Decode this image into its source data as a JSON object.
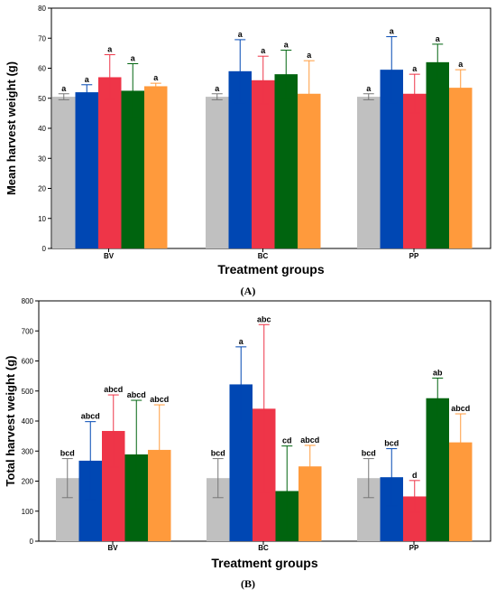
{
  "colors": [
    "#c0c0c0",
    "#0047b3",
    "#ee3548",
    "#00640f",
    "#ff9a3c"
  ],
  "chart_data": [
    {
      "type": "bar",
      "panel_label": "(A)",
      "xlabel": "Treatment groups",
      "ylabel": "Mean harvest weight (g)",
      "ylim": [
        0,
        80
      ],
      "yticks": [
        0,
        10,
        20,
        30,
        40,
        50,
        60,
        70,
        80
      ],
      "categories": [
        "BV",
        "BC",
        "PP"
      ],
      "series": [
        {
          "values": [
            50.5,
            50.5,
            50.5
          ],
          "err": [
            1,
            1,
            1
          ],
          "labels": [
            "a",
            "a",
            "a"
          ]
        },
        {
          "values": [
            52,
            59,
            59.5
          ],
          "err": [
            2.5,
            10.5,
            11
          ],
          "labels": [
            "a",
            "a",
            "a"
          ]
        },
        {
          "values": [
            57,
            56,
            51.5
          ],
          "err": [
            7.5,
            8,
            6.5
          ],
          "labels": [
            "a",
            "a",
            "a"
          ]
        },
        {
          "values": [
            52.5,
            58,
            62
          ],
          "err": [
            9,
            8,
            6
          ],
          "labels": [
            "a",
            "a",
            "a"
          ]
        },
        {
          "values": [
            54,
            51.5,
            53.5
          ],
          "err": [
            1,
            11,
            6
          ],
          "labels": [
            "a",
            "a",
            "a"
          ]
        }
      ]
    },
    {
      "type": "bar",
      "panel_label": "(B)",
      "xlabel": "Treatment groups",
      "ylabel": "Total harvest weight (g)",
      "ylim": [
        0,
        800
      ],
      "yticks": [
        0,
        100,
        200,
        300,
        400,
        500,
        600,
        700,
        800
      ],
      "categories": [
        "BV",
        "BC",
        "PP"
      ],
      "series": [
        {
          "values": [
            210,
            210,
            210
          ],
          "err": [
            65,
            65,
            65
          ],
          "labels": [
            "bcd",
            "bcd",
            "bcd"
          ]
        },
        {
          "values": [
            268,
            522,
            213
          ],
          "err": [
            130,
            125,
            95
          ],
          "labels": [
            "abcd",
            "a",
            "bcd"
          ]
        },
        {
          "values": [
            367,
            441,
            149
          ],
          "err": [
            120,
            280,
            53
          ],
          "labels": [
            "abcd",
            "abc",
            "d"
          ]
        },
        {
          "values": [
            289,
            167,
            476
          ],
          "err": [
            180,
            150,
            67
          ],
          "labels": [
            "abcd",
            "cd",
            "ab"
          ]
        },
        {
          "values": [
            304,
            249,
            329
          ],
          "err": [
            150,
            70,
            95
          ],
          "labels": [
            "abcd",
            "abcd",
            "abcd"
          ]
        }
      ]
    }
  ]
}
